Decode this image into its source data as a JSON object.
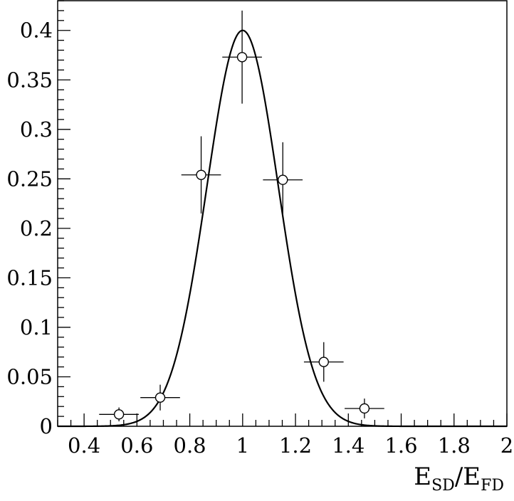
{
  "chart_data": {
    "type": "scatter",
    "title": "",
    "xlabel": "E_SD/E_FD",
    "xlabel_parts": {
      "main1": "E",
      "sub1": "SD",
      "sep": "/E",
      "sub2": "FD"
    },
    "ylabel": "",
    "xlim": [
      0.3,
      2.0
    ],
    "ylim": [
      0,
      0.43
    ],
    "x_ticks": [
      0.4,
      0.6,
      0.8,
      1.0,
      1.2,
      1.4,
      1.6,
      1.8,
      2.0
    ],
    "x_tick_labels": [
      "0.4",
      "0.6",
      "0.8",
      "1",
      "1.2",
      "1.4",
      "1.6",
      "1.8",
      "2"
    ],
    "y_ticks": [
      0,
      0.05,
      0.1,
      0.15,
      0.2,
      0.25,
      0.3,
      0.35,
      0.4
    ],
    "y_tick_labels": [
      "0",
      "0.05",
      "0.1",
      "0.15",
      "0.2",
      "0.25",
      "0.3",
      "0.35",
      "0.4"
    ],
    "grid": false,
    "series": [
      {
        "kind": "points-with-errors",
        "marker": "open-circle",
        "points": [
          {
            "x": 0.532,
            "y": 0.012,
            "xerr": 0.075,
            "yerr": 0.007
          },
          {
            "x": 0.688,
            "y": 0.029,
            "xerr": 0.075,
            "yerr": 0.013
          },
          {
            "x": 0.843,
            "y": 0.254,
            "xerr": 0.075,
            "yerr": 0.039
          },
          {
            "x": 0.998,
            "y": 0.373,
            "xerr": 0.075,
            "yerr": 0.047
          },
          {
            "x": 1.152,
            "y": 0.249,
            "xerr": 0.075,
            "yerr": 0.038
          },
          {
            "x": 1.307,
            "y": 0.065,
            "xerr": 0.075,
            "yerr": 0.02
          },
          {
            "x": 1.461,
            "y": 0.018,
            "xerr": 0.075,
            "yerr": 0.01
          }
        ]
      },
      {
        "kind": "curve",
        "shape": "gaussian",
        "mean": 1.0,
        "sigma": 0.135,
        "peak": 0.4
      }
    ]
  }
}
